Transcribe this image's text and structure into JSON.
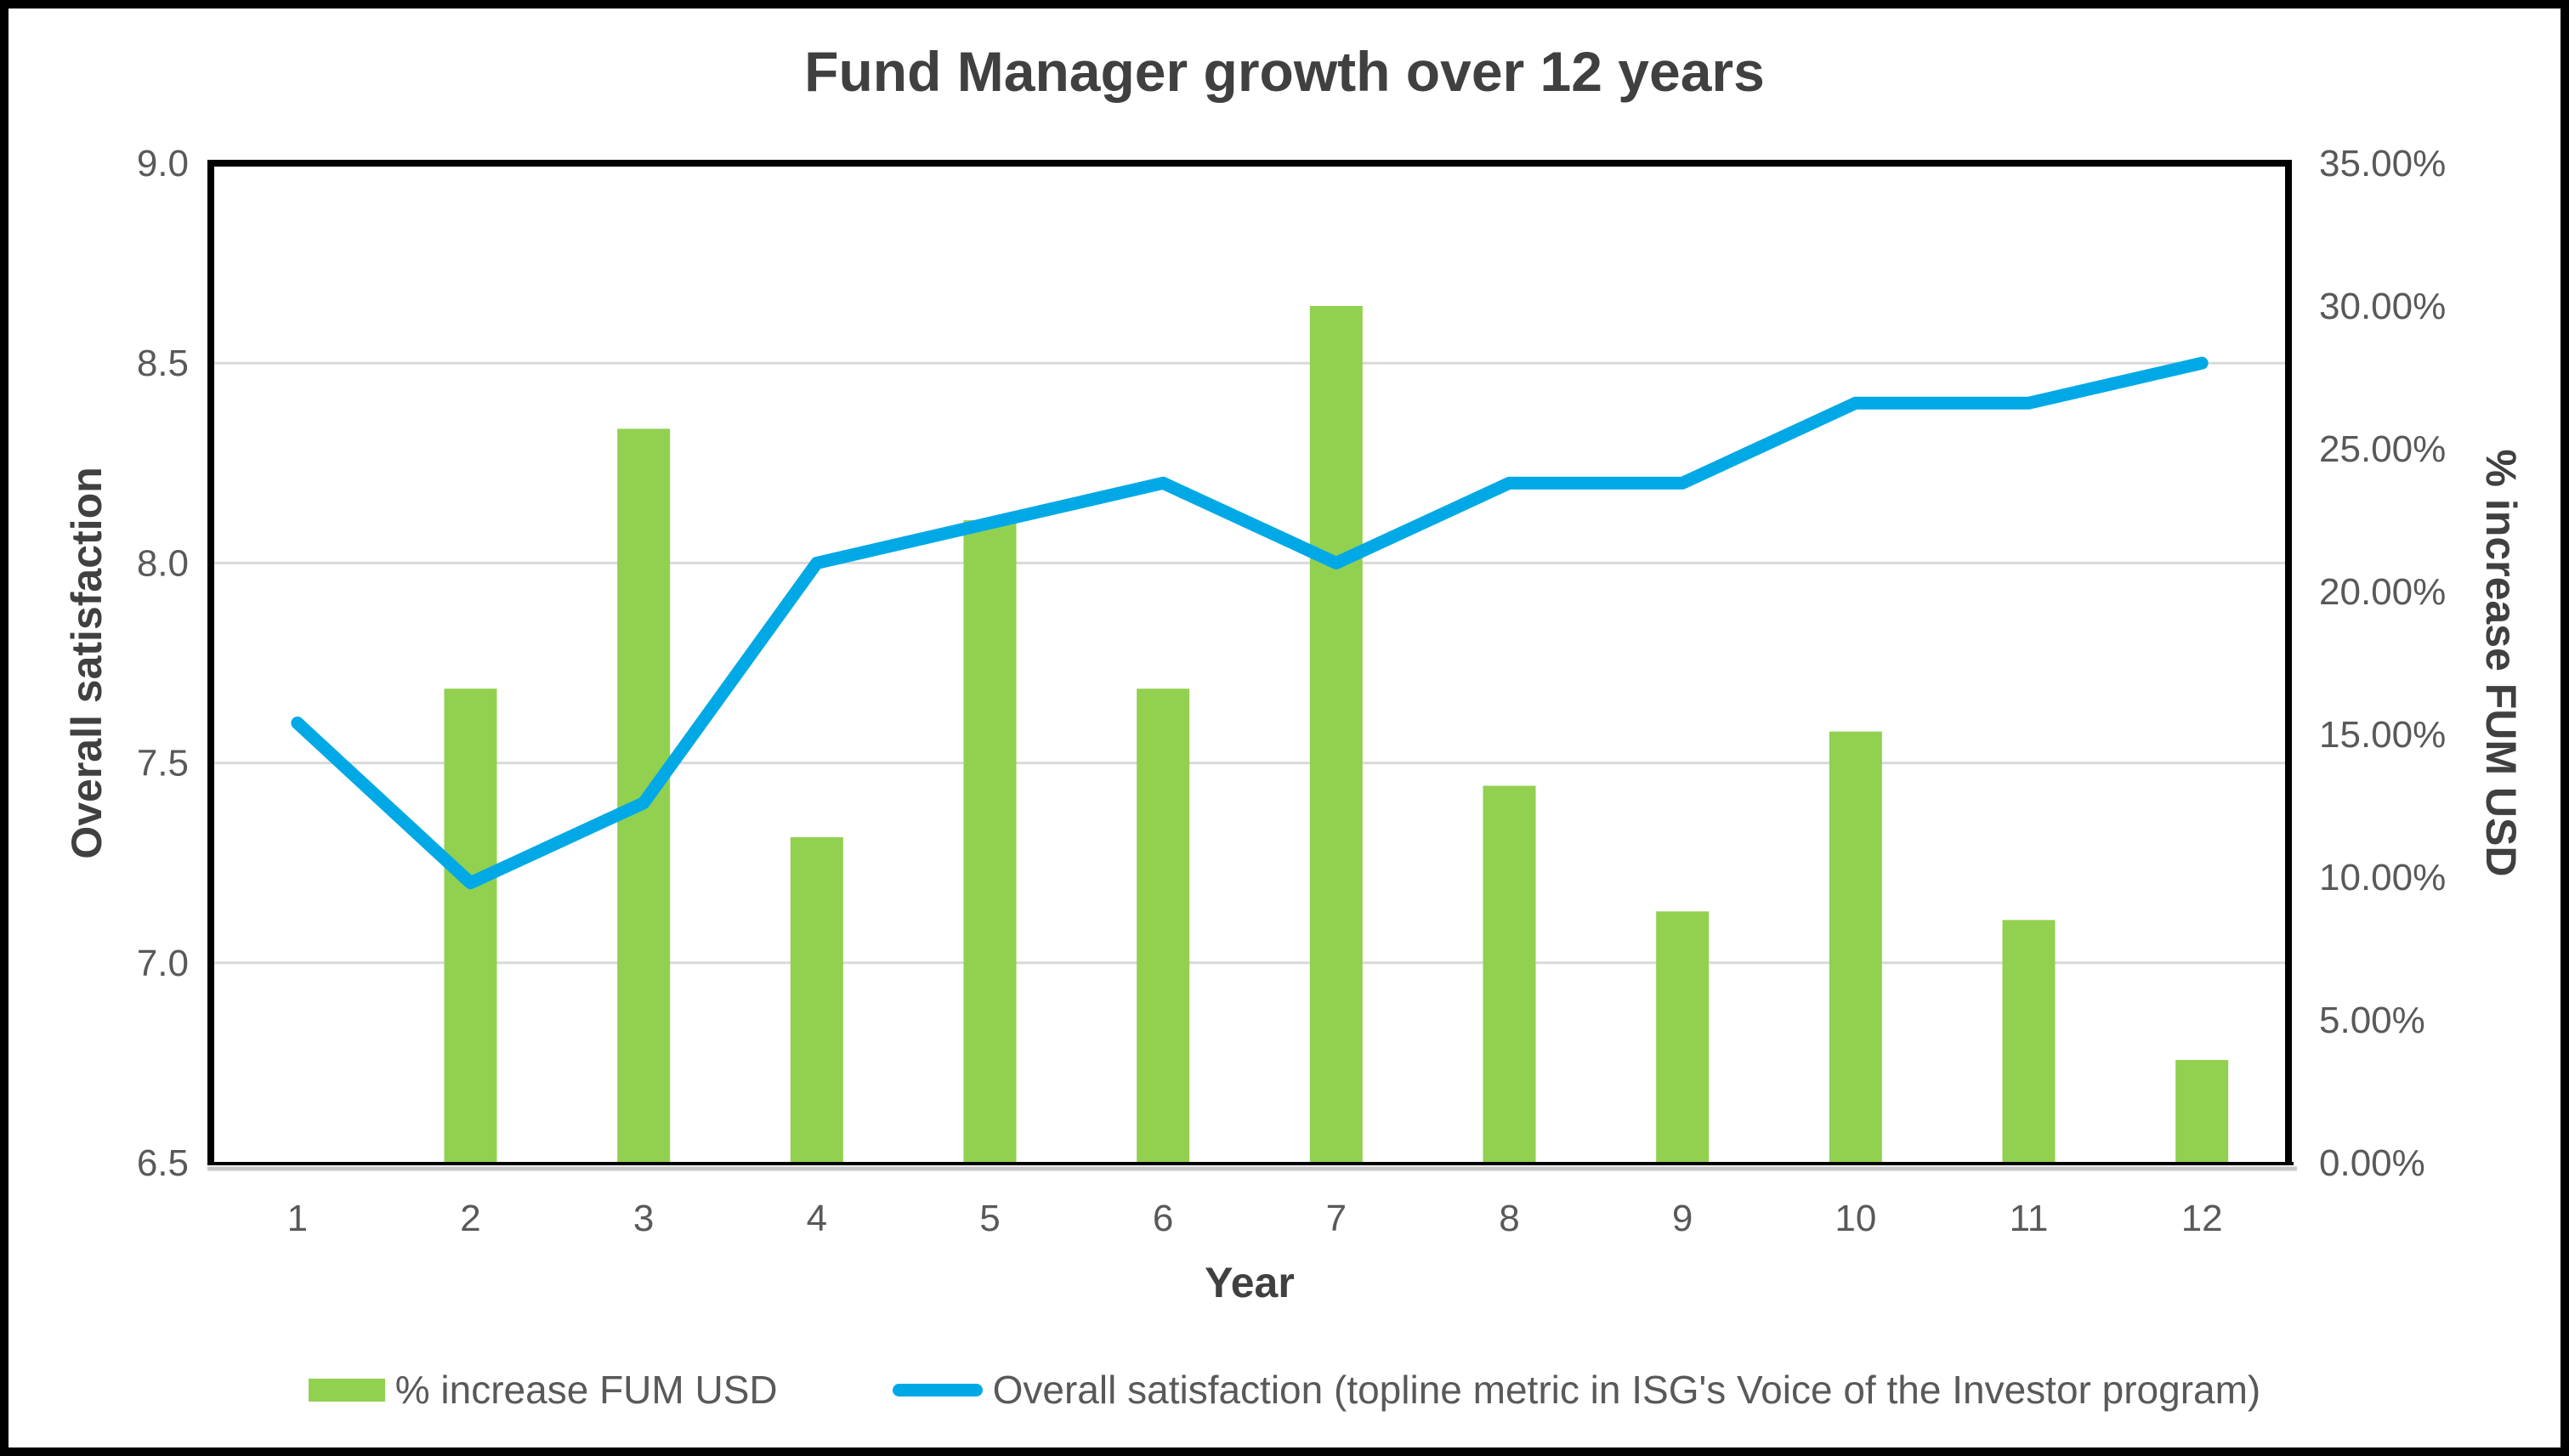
{
  "window": {
    "background": "#ffffff",
    "frame_border_color": "#000000"
  },
  "chart_data": {
    "type": "combo",
    "title": "Fund Manager growth over 12 years",
    "x_axis": {
      "title": "Year",
      "categories": [
        "1",
        "2",
        "3",
        "4",
        "5",
        "6",
        "7",
        "8",
        "9",
        "10",
        "11",
        "12"
      ]
    },
    "left_axis": {
      "title": "Overall satisfaction",
      "min": 6.5,
      "max": 9.0,
      "step": 0.5,
      "tick_labels": [
        "9.0",
        "8.5",
        "8.0",
        "7.5",
        "7.0",
        "6.5"
      ]
    },
    "right_axis": {
      "title": "% increase FUM USD",
      "min": 0,
      "max": 35,
      "step": 5,
      "tick_labels": [
        "35.00%",
        "30.00%",
        "25.00%",
        "20.00%",
        "15.00%",
        "10.00%",
        "5.00%",
        "0.00%"
      ]
    },
    "grid": true,
    "legend_position": "bottom",
    "series": [
      {
        "name": "% increase FUM USD",
        "type": "bar",
        "axis": "right",
        "color": "#92D050",
        "values": [
          null,
          16.6,
          25.7,
          11.4,
          22.5,
          16.6,
          30.0,
          13.2,
          8.8,
          15.1,
          8.5,
          3.6
        ]
      },
      {
        "name": "Overall satisfaction (topline metric in ISG's Voice of the Investor program)",
        "type": "line",
        "axis": "left",
        "color": "#00A9E6",
        "values": [
          7.6,
          7.2,
          7.4,
          8.0,
          8.1,
          8.2,
          8.0,
          8.2,
          8.2,
          8.4,
          8.4,
          8.5
        ]
      }
    ],
    "colors": {
      "gridline": "#D9D9D9",
      "plot_border": "#000000",
      "axis_line": "#000000",
      "axis_shadow": "#C8C8C8",
      "tick_text": "#595959",
      "title_text": "#404040"
    }
  }
}
